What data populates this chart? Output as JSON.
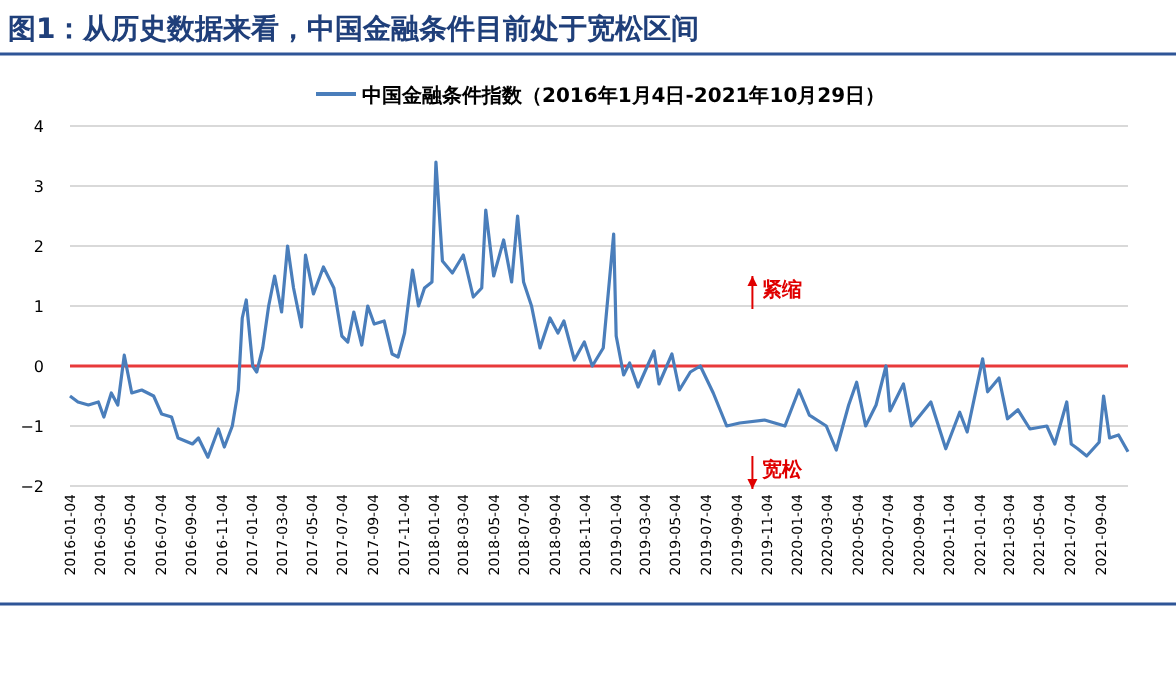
{
  "chart_data": {
    "type": "line",
    "title": "图1：从历史数据来看，中国金融条件目前处于宽松区间",
    "annotations": [
      "紧缩",
      "宽松"
    ],
    "legend": "top",
    "grid": "y",
    "ylim": [
      -2,
      4
    ],
    "yticks": [
      -2,
      -1,
      0,
      1,
      2,
      3,
      4
    ],
    "xlim": [
      "2016-01-04",
      "2021-10-29"
    ],
    "xticks": [
      "2016-01-04",
      "2016-03-04",
      "2016-05-04",
      "2016-07-04",
      "2016-09-04",
      "2016-11-04",
      "2017-01-04",
      "2017-03-04",
      "2017-05-04",
      "2017-07-04",
      "2017-09-04",
      "2017-11-04",
      "2018-01-04",
      "2018-03-04",
      "2018-05-04",
      "2018-07-04",
      "2018-09-04",
      "2018-11-04",
      "2019-01-04",
      "2019-03-04",
      "2019-05-04",
      "2019-07-04",
      "2019-09-04",
      "2019-11-04",
      "2020-01-04",
      "2020-03-04",
      "2020-05-04",
      "2020-07-04",
      "2020-09-04",
      "2020-11-04",
      "2021-01-04",
      "2021-03-04",
      "2021-05-04",
      "2021-07-04",
      "2021-09-04"
    ],
    "ref_lines": [
      {
        "axis": "y",
        "value": 0,
        "color": "#e8393a"
      }
    ],
    "series": [
      {
        "name": "中国金融条件指数（2016年1月4日-2021年10月29日）",
        "color": "#4a7ebb",
        "x": [
          "2016-01-04",
          "2016-01-20",
          "2016-02-10",
          "2016-03-01",
          "2016-03-12",
          "2016-03-27",
          "2016-04-09",
          "2016-04-22",
          "2016-05-07",
          "2016-05-27",
          "2016-06-20",
          "2016-07-06",
          "2016-07-26",
          "2016-08-08",
          "2016-09-06",
          "2016-09-18",
          "2016-10-07",
          "2016-10-28",
          "2016-11-09",
          "2016-11-25",
          "2016-12-07",
          "2016-12-15",
          "2016-12-23",
          "2017-01-05",
          "2017-01-13",
          "2017-01-25",
          "2017-02-06",
          "2017-02-18",
          "2017-03-04",
          "2017-03-16",
          "2017-03-28",
          "2017-04-13",
          "2017-04-21",
          "2017-05-07",
          "2017-05-27",
          "2017-06-17",
          "2017-07-03",
          "2017-07-15",
          "2017-07-27",
          "2017-08-12",
          "2017-08-24",
          "2017-09-06",
          "2017-09-26",
          "2017-10-12",
          "2017-10-24",
          "2017-11-06",
          "2017-11-22",
          "2017-12-04",
          "2017-12-16",
          "2017-12-31",
          "2018-01-08",
          "2018-01-21",
          "2018-02-10",
          "2018-03-04",
          "2018-03-24",
          "2018-04-10",
          "2018-04-18",
          "2018-05-04",
          "2018-05-24",
          "2018-06-09",
          "2018-06-21",
          "2018-07-03",
          "2018-07-19",
          "2018-08-05",
          "2018-08-25",
          "2018-09-10",
          "2018-09-22",
          "2018-10-13",
          "2018-11-02",
          "2018-11-18",
          "2018-12-10",
          "2018-12-31",
          "2019-01-05",
          "2019-01-20",
          "2019-02-01",
          "2019-02-18",
          "2019-03-22",
          "2019-04-01",
          "2019-04-27",
          "2019-05-12",
          "2019-06-03",
          "2019-06-23",
          "2019-07-19",
          "2019-08-15",
          "2019-09-10",
          "2019-10-30",
          "2019-12-10",
          "2020-01-07",
          "2020-01-28",
          "2020-03-02",
          "2020-03-22",
          "2020-04-16",
          "2020-05-02",
          "2020-05-20",
          "2020-06-10",
          "2020-06-30",
          "2020-07-08",
          "2020-08-04",
          "2020-08-20",
          "2020-09-28",
          "2020-10-28",
          "2020-11-25",
          "2020-12-10",
          "2021-01-10",
          "2021-01-20",
          "2021-02-12",
          "2021-03-01",
          "2021-03-22",
          "2021-04-15",
          "2021-05-19",
          "2021-06-04",
          "2021-06-28",
          "2021-07-07",
          "2021-07-20",
          "2021-08-07",
          "2021-09-01",
          "2021-09-10",
          "2021-09-22",
          "2021-10-10",
          "2021-10-29"
        ],
        "values": [
          -0.5,
          -0.6,
          -0.65,
          -0.6,
          -0.85,
          -0.45,
          -0.65,
          0.18,
          -0.45,
          -0.4,
          -0.5,
          -0.8,
          -0.85,
          -1.2,
          -1.3,
          -1.2,
          -1.52,
          -1.05,
          -1.35,
          -1.0,
          -0.4,
          0.8,
          1.1,
          0.0,
          -0.1,
          0.3,
          1.0,
          1.5,
          0.9,
          2.0,
          1.3,
          0.65,
          1.85,
          1.2,
          1.65,
          1.3,
          0.5,
          0.4,
          0.9,
          0.35,
          1.0,
          0.7,
          0.75,
          0.2,
          0.15,
          0.55,
          1.6,
          1.0,
          1.3,
          1.4,
          3.4,
          1.75,
          1.55,
          1.85,
          1.15,
          1.3,
          2.6,
          1.5,
          2.1,
          1.4,
          2.5,
          1.4,
          1.0,
          0.3,
          0.8,
          0.55,
          0.75,
          0.1,
          0.4,
          0.0,
          0.3,
          2.2,
          0.5,
          -0.15,
          0.05,
          -0.35,
          0.25,
          -0.3,
          0.2,
          -0.4,
          -0.1,
          0.0,
          -0.45,
          -1.0,
          -0.95,
          -0.9,
          -1.0,
          -0.4,
          -0.82,
          -1.0,
          -1.4,
          -0.65,
          -0.27,
          -1.0,
          -0.65,
          0.0,
          -0.75,
          -0.3,
          -1.0,
          -0.6,
          -1.38,
          -0.77,
          -1.1,
          0.12,
          -0.43,
          -0.2,
          -0.88,
          -0.73,
          -1.05,
          -1.0,
          -1.3,
          -0.6,
          -1.3,
          -1.38,
          -1.5,
          -1.27,
          -0.5,
          -1.2,
          -1.15,
          -1.43
        ]
      }
    ]
  }
}
